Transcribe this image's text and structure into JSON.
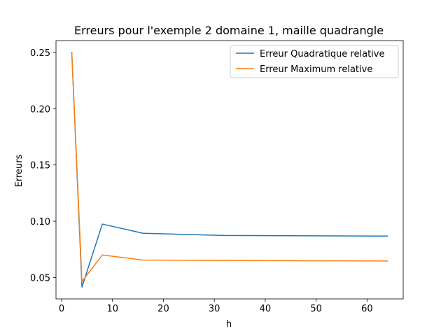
{
  "chart_data": {
    "type": "line",
    "title": "Erreurs pour l'exemple 2 domaine 1, maille quadrangle",
    "xlabel": "h",
    "ylabel": "Erreurs",
    "xlim": [
      -1.1,
      67.1
    ],
    "ylim": [
      0.031,
      0.2605
    ],
    "xticks": [
      0,
      10,
      20,
      30,
      40,
      50,
      60
    ],
    "yticks": [
      0.05,
      0.1,
      0.15,
      0.2,
      0.25
    ],
    "xtick_labels": [
      "0",
      "10",
      "20",
      "30",
      "40",
      "50",
      "60"
    ],
    "ytick_labels": [
      "0.05",
      "0.10",
      "0.15",
      "0.20",
      "0.25"
    ],
    "grid": false,
    "legend_position": "top-right",
    "x": [
      2,
      4,
      8,
      16,
      32,
      64
    ],
    "series": [
      {
        "name": "Erreur Quadratique relative",
        "color": "#1f77b4",
        "values": [
          0.25,
          0.0415,
          0.0975,
          0.0893,
          0.0874,
          0.0868
        ]
      },
      {
        "name": "Erreur Maximum relative",
        "color": "#ff7f0e",
        "values": [
          0.25,
          0.0465,
          0.07,
          0.0655,
          0.0651,
          0.0647
        ]
      }
    ]
  }
}
